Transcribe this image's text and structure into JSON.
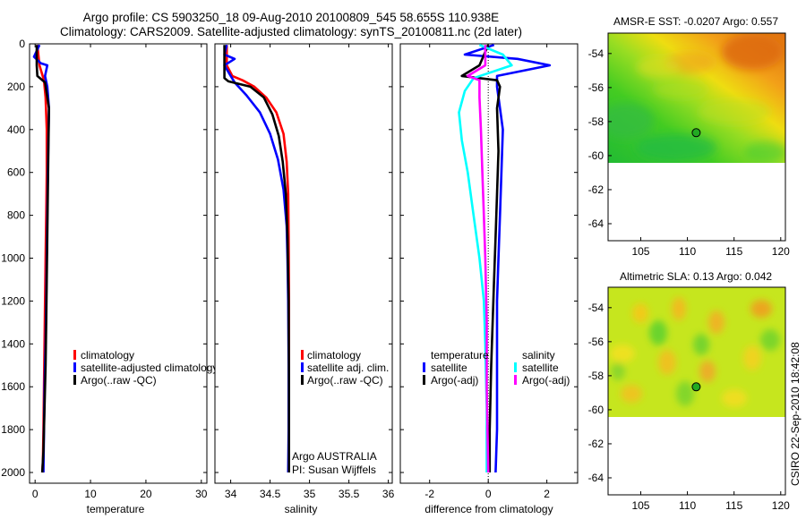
{
  "header": {
    "line1": "Argo profile: CS 5903250_18 09-Aug-2010 20100809_545 58.655S 110.938E",
    "line2": "Climatology: CARS2009. Satellite-adjusted climatology: synTS_20100811.nc (2d later)"
  },
  "credit": "CSIRO 22-Sep-2010 18:42:08",
  "colors": {
    "climatology": "#ff0000",
    "satellite": "#0000ff",
    "argo": "#000000",
    "salinity_satellite": "#00ffff",
    "salinity_argo_adj": "#ff00ff",
    "map_marker": "#22aa22"
  },
  "chart_data": [
    {
      "type": "line",
      "id": "temperature",
      "xlabel": "temperature",
      "ylabel": "",
      "xlim": [
        -1,
        31
      ],
      "ylim": [
        2050,
        0
      ],
      "xticks": [
        0,
        10,
        20,
        30
      ],
      "yticks": [
        0,
        200,
        400,
        600,
        800,
        1000,
        1200,
        1400,
        1600,
        1800,
        2000
      ],
      "legend": [
        {
          "text": "climatology",
          "color": "#ff0000"
        },
        {
          "text": "satellite-adjusted climatology",
          "color": "#0000ff"
        },
        {
          "text": "Argo(..raw -QC)",
          "color": "#000000"
        }
      ],
      "series": [
        {
          "name": "climatology",
          "color": "#ff0000",
          "x": [
            0.4,
            0.8,
            1.6,
            1.9,
            2.1,
            2.1,
            2.0,
            1.9,
            1.8,
            1.7,
            1.6,
            1.5,
            1.4,
            1.3
          ],
          "y": [
            5,
            100,
            170,
            250,
            400,
            600,
            800,
            1000,
            1200,
            1400,
            1600,
            1800,
            1950,
            2000
          ]
        },
        {
          "name": "satellite-adjusted climatology",
          "color": "#0000ff",
          "x": [
            0.8,
            -0.2,
            1.0,
            2.2,
            1.8,
            2.2,
            2.5,
            2.4,
            2.3,
            2.2,
            2.1,
            2.0,
            1.9,
            1.7,
            1.6,
            1.5
          ],
          "y": [
            5,
            60,
            90,
            100,
            150,
            200,
            300,
            450,
            600,
            800,
            1000,
            1200,
            1400,
            1600,
            1800,
            2000
          ]
        },
        {
          "name": "Argo(..raw -QC)",
          "color": "#000000",
          "x": [
            0.3,
            0.3,
            0.4,
            1.8,
            2.5,
            2.4,
            2.3,
            2.2,
            2.1,
            2.0,
            1.9,
            1.7,
            1.5,
            1.3
          ],
          "y": [
            5,
            100,
            150,
            180,
            300,
            500,
            700,
            900,
            1100,
            1300,
            1500,
            1700,
            1900,
            2000
          ]
        }
      ]
    },
    {
      "type": "line",
      "id": "salinity",
      "xlabel": "salinity",
      "ylabel": "",
      "xlim": [
        33.8,
        36.05
      ],
      "ylim": [
        2050,
        0
      ],
      "xticks": [
        34,
        34.5,
        35,
        35.5,
        36
      ],
      "xtick_labels": [
        "34",
        "34.5",
        "35",
        "35.5",
        "36"
      ],
      "legend": [
        {
          "text": "climatology",
          "color": "#ff0000"
        },
        {
          "text": "satellite adj. clim.",
          "color": "#0000ff"
        },
        {
          "text": "Argo(..raw -QC)",
          "color": "#000000"
        }
      ],
      "annotations": [
        "Argo AUSTRALIA",
        "PI: Susan Wijffels"
      ],
      "series": [
        {
          "name": "climatology",
          "color": "#ff0000",
          "x": [
            33.95,
            33.95,
            34.02,
            34.15,
            34.3,
            34.45,
            34.58,
            34.67,
            34.71,
            34.73,
            34.735,
            34.74,
            34.74,
            34.74,
            34.735
          ],
          "y": [
            5,
            100,
            150,
            170,
            200,
            250,
            320,
            420,
            550,
            700,
            900,
            1200,
            1500,
            1800,
            2000
          ]
        },
        {
          "name": "satellite adj. clim.",
          "color": "#0000ff",
          "x": [
            33.95,
            33.92,
            34.05,
            33.92,
            34.0,
            34.05,
            34.2,
            34.37,
            34.5,
            34.6,
            34.67,
            34.71,
            34.72,
            34.73,
            34.735,
            34.735,
            34.73
          ],
          "y": [
            5,
            50,
            70,
            100,
            150,
            180,
            240,
            320,
            420,
            540,
            680,
            850,
            1000,
            1200,
            1500,
            1800,
            2000
          ]
        },
        {
          "name": "Argo(..raw -QC)",
          "color": "#000000",
          "x": [
            33.92,
            33.92,
            33.97,
            34.25,
            34.42,
            34.53,
            34.61,
            34.66,
            34.7,
            34.72,
            34.735,
            34.74,
            34.74
          ],
          "y": [
            5,
            160,
            175,
            200,
            250,
            330,
            430,
            550,
            700,
            900,
            1200,
            1600,
            2000
          ]
        }
      ]
    },
    {
      "type": "line",
      "id": "difference",
      "xlabel": "difference from climatology",
      "ylabel": "",
      "xlim": [
        -3,
        3.05
      ],
      "ylim": [
        2050,
        0
      ],
      "xticks": [
        -2,
        0,
        2
      ],
      "legend_groups": [
        {
          "title": "temperature",
          "items": [
            {
              "text": "satellite",
              "color": "#0000ff"
            },
            {
              "text": "Argo(-adj)",
              "color": "#000000"
            }
          ]
        },
        {
          "title": "salinity",
          "items": [
            {
              "text": "satellite",
              "color": "#00ffff"
            },
            {
              "text": "Argo(-adj)",
              "color": "#ff00ff"
            }
          ]
        }
      ],
      "series": [
        {
          "name": "temperature satellite",
          "color": "#0000ff",
          "x": [
            0.2,
            -0.8,
            1.0,
            2.1,
            0.3,
            0.3,
            0.4,
            0.5,
            0.45,
            0.4,
            0.35,
            0.3,
            0.3,
            0.3,
            0.3,
            0.25
          ],
          "y": [
            5,
            50,
            70,
            100,
            150,
            200,
            300,
            400,
            600,
            800,
            1000,
            1200,
            1400,
            1600,
            1800,
            2000
          ]
        },
        {
          "name": "temperature Argo(-adj)",
          "color": "#000000",
          "x": [
            0.0,
            -0.3,
            -0.9,
            0.3,
            0.4,
            0.3,
            0.35,
            0.3,
            0.25,
            0.2,
            0.15,
            0.1,
            0.05,
            0.05
          ],
          "y": [
            5,
            100,
            150,
            170,
            200,
            300,
            500,
            700,
            900,
            1100,
            1300,
            1500,
            1800,
            2000
          ]
        },
        {
          "name": "salinity satellite",
          "color": "#00ffff",
          "x": [
            -0.3,
            0.5,
            0.8,
            -0.5,
            -0.8,
            -1.0,
            -0.9,
            -0.7,
            -0.5,
            -0.3,
            -0.15,
            -0.1,
            -0.05,
            -0.05
          ],
          "y": [
            5,
            50,
            100,
            160,
            220,
            320,
            450,
            600,
            800,
            1000,
            1200,
            1400,
            1700,
            2000
          ]
        },
        {
          "name": "salinity Argo(-adj)",
          "color": "#ff00ff",
          "x": [
            -0.1,
            -0.1,
            -0.7,
            -0.3,
            -0.3,
            -0.25,
            -0.2,
            -0.15,
            -0.1,
            -0.05,
            -0.05,
            0.0
          ],
          "y": [
            5,
            100,
            150,
            170,
            250,
            400,
            600,
            800,
            1000,
            1300,
            1600,
            2000
          ]
        }
      ]
    },
    {
      "type": "heatmap",
      "id": "sst-map",
      "title": "AMSR-E SST: -0.0207 Argo: 0.557",
      "xlim": [
        101.5,
        120.5
      ],
      "ylim": [
        -65,
        -52.8
      ],
      "xticks": [
        105,
        110,
        115,
        120
      ],
      "yticks": [
        -54,
        -56,
        -58,
        -60,
        -62,
        -64
      ],
      "data_bottom_lat": -60,
      "marker": {
        "lon": 110.938,
        "lat": -58.655
      }
    },
    {
      "type": "heatmap",
      "id": "sla-map",
      "title": "Altimetric SLA: 0.13 Argo: 0.042",
      "xlim": [
        101.5,
        120.5
      ],
      "ylim": [
        -65,
        -52.8
      ],
      "xticks": [
        105,
        110,
        115,
        120
      ],
      "yticks": [
        -54,
        -56,
        -58,
        -60,
        -62,
        -64
      ],
      "data_bottom_lat": -60,
      "marker": {
        "lon": 110.938,
        "lat": -58.655
      }
    }
  ]
}
